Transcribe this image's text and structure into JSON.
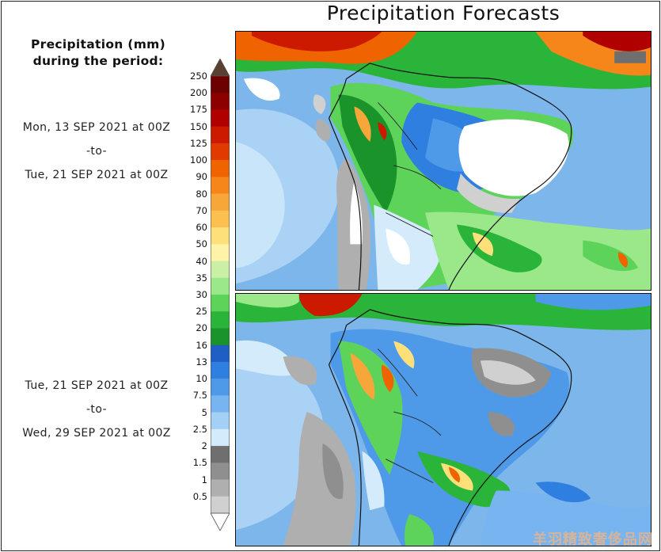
{
  "title": "Precipitation Forecasts",
  "legend": {
    "title_line1": "Precipitation (mm)",
    "title_line2": "during the period:",
    "levels": [
      "250",
      "200",
      "175",
      "150",
      "125",
      "100",
      "90",
      "80",
      "70",
      "60",
      "50",
      "40",
      "35",
      "30",
      "25",
      "20",
      "16",
      "13",
      "10",
      "7.5",
      "5",
      "2.5",
      "2",
      "1.5",
      "1",
      "0.5"
    ],
    "colors": [
      "#6d0000",
      "#8c0000",
      "#b00000",
      "#cc1a00",
      "#e03a00",
      "#ef6400",
      "#f6861a",
      "#f7a63a",
      "#fbc050",
      "#fde07a",
      "#fff3a8",
      "#caf0a6",
      "#9be88a",
      "#5ed35a",
      "#2ab53a",
      "#1b932b",
      "#1f5fc4",
      "#2f7fe0",
      "#4f9ae8",
      "#78b5f0",
      "#a5d0f6",
      "#d3ebfb",
      "#6f6f6f",
      "#8f8f8f",
      "#afafaf",
      "#d0d0d0"
    ],
    "arrow_top": "#5a4030",
    "arrow_bottom": "#ffffff"
  },
  "period1": {
    "start": "Mon, 13 SEP 2021 at 00Z",
    "sep": "-to-",
    "end": "Tue, 21 SEP 2021 at 00Z"
  },
  "period2": {
    "start": "Tue, 21 SEP 2021 at 00Z",
    "sep": "-to-",
    "end": "Wed, 29 SEP 2021 at 00Z"
  },
  "watermark": "羊羽精致奢侈品网"
}
